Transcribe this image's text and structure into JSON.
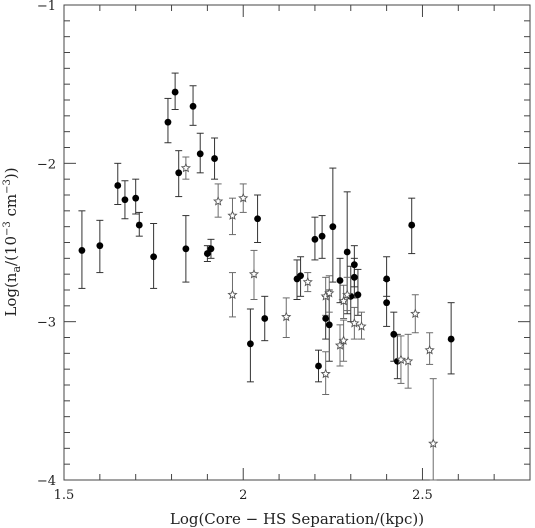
{
  "chart_data": {
    "type": "scatter",
    "title": "",
    "xlabel": "Log(Core − HS Separation/(kpc))",
    "ylabel": "Log(n",
    "ylabel_sub": "a",
    "ylabel_tail": "/(10",
    "ylabel_sup": "−3",
    "ylabel_unit": " cm",
    "ylabel_unit_sup": "−3",
    "ylabel_end": "))",
    "xlim": [
      1.5,
      2.8
    ],
    "ylim": [
      -4,
      -1
    ],
    "x_major_ticks": [
      1.5,
      2,
      2.5
    ],
    "x_tick_labels": [
      "1.5",
      "2",
      "2.5"
    ],
    "y_major_ticks": [
      -4,
      -3,
      -2,
      -1
    ],
    "y_tick_labels": [
      "−4",
      "−3",
      "−2",
      "−1"
    ],
    "grid": false,
    "series": [
      {
        "marker": "filled-circle",
        "color": "#000000",
        "points": [
          {
            "x": 1.55,
            "y": -2.55,
            "lo": -2.79,
            "hi": -2.3
          },
          {
            "x": 1.6,
            "y": -2.52,
            "lo": -2.69,
            "hi": -2.36
          },
          {
            "x": 1.65,
            "y": -2.14,
            "lo": -2.26,
            "hi": -2.0
          },
          {
            "x": 1.67,
            "y": -2.23,
            "lo": -2.35,
            "hi": -2.11
          },
          {
            "x": 1.7,
            "y": -2.22,
            "lo": -2.32,
            "hi": -2.1
          },
          {
            "x": 1.71,
            "y": -2.39,
            "lo": -2.46,
            "hi": -2.31
          },
          {
            "x": 1.75,
            "y": -2.59,
            "lo": -2.79,
            "hi": -2.38
          },
          {
            "x": 1.79,
            "y": -1.74,
            "lo": -1.87,
            "hi": -1.59
          },
          {
            "x": 1.81,
            "y": -1.55,
            "lo": -1.66,
            "hi": -1.43
          },
          {
            "x": 1.82,
            "y": -2.06,
            "lo": -2.21,
            "hi": -1.92
          },
          {
            "x": 1.84,
            "y": -2.54,
            "lo": -2.75,
            "hi": -2.33
          },
          {
            "x": 1.86,
            "y": -1.64,
            "lo": -1.76,
            "hi": -1.51
          },
          {
            "x": 1.88,
            "y": -1.94,
            "lo": -2.06,
            "hi": -1.81
          },
          {
            "x": 1.9,
            "y": -2.57,
            "lo": -2.62,
            "hi": -2.52
          },
          {
            "x": 1.91,
            "y": -2.54,
            "lo": -2.6,
            "hi": -2.48
          },
          {
            "x": 1.92,
            "y": -1.97,
            "lo": -2.1,
            "hi": -1.84
          },
          {
            "x": 2.02,
            "y": -3.14,
            "lo": -3.38,
            "hi": -2.92
          },
          {
            "x": 2.04,
            "y": -2.35,
            "lo": -2.5,
            "hi": -2.2
          },
          {
            "x": 2.06,
            "y": -2.98,
            "lo": -3.12,
            "hi": -2.84
          },
          {
            "x": 2.15,
            "y": -2.73,
            "lo": -2.86,
            "hi": -2.61
          },
          {
            "x": 2.16,
            "y": -2.71,
            "lo": -2.84,
            "hi": -2.59
          },
          {
            "x": 2.2,
            "y": -2.48,
            "lo": -2.61,
            "hi": -2.34
          },
          {
            "x": 2.21,
            "y": -3.28,
            "lo": -3.38,
            "hi": -3.18
          },
          {
            "x": 2.22,
            "y": -2.46,
            "lo": -2.6,
            "hi": -2.33
          },
          {
            "x": 2.23,
            "y": -2.98,
            "lo": -3.11,
            "hi": -2.84
          },
          {
            "x": 2.24,
            "y": -3.02,
            "lo": -3.25,
            "hi": -2.8
          },
          {
            "x": 2.25,
            "y": -2.4,
            "lo": -2.75,
            "hi": -2.03
          },
          {
            "x": 2.27,
            "y": -2.74,
            "lo": -2.88,
            "hi": -2.6
          },
          {
            "x": 2.29,
            "y": -2.56,
            "lo": -2.95,
            "hi": -2.18
          },
          {
            "x": 2.3,
            "y": -2.84,
            "lo": -3.0,
            "hi": -2.65
          },
          {
            "x": 2.31,
            "y": -2.72,
            "lo": -2.85,
            "hi": -2.6
          },
          {
            "x": 2.31,
            "y": -2.64,
            "lo": -2.78,
            "hi": -2.52
          },
          {
            "x": 2.32,
            "y": -2.83,
            "lo": -2.96,
            "hi": -2.67
          },
          {
            "x": 2.4,
            "y": -2.73,
            "lo": -2.84,
            "hi": -2.59
          },
          {
            "x": 2.4,
            "y": -2.88,
            "lo": -3.03,
            "hi": -2.74
          },
          {
            "x": 2.42,
            "y": -3.08,
            "lo": -3.25,
            "hi": -2.94
          },
          {
            "x": 2.43,
            "y": -3.25,
            "lo": -3.36,
            "hi": -3.08
          },
          {
            "x": 2.47,
            "y": -2.39,
            "lo": -2.57,
            "hi": -2.22
          },
          {
            "x": 2.58,
            "y": -3.11,
            "lo": -3.33,
            "hi": -2.88
          }
        ]
      },
      {
        "marker": "open-star",
        "color": "#000000",
        "points": [
          {
            "x": 1.84,
            "y": -2.03,
            "lo": -2.1,
            "hi": -1.96
          },
          {
            "x": 1.93,
            "y": -2.24,
            "lo": -2.34,
            "hi": -2.13
          },
          {
            "x": 1.97,
            "y": -2.33,
            "lo": -2.45,
            "hi": -2.22
          },
          {
            "x": 2.0,
            "y": -2.22,
            "lo": -2.31,
            "hi": -2.13
          },
          {
            "x": 1.97,
            "y": -2.83,
            "lo": -2.97,
            "hi": -2.69
          },
          {
            "x": 2.03,
            "y": -2.7,
            "lo": -2.86,
            "hi": -2.55
          },
          {
            "x": 2.12,
            "y": -2.97,
            "lo": -3.1,
            "hi": -2.85
          },
          {
            "x": 2.18,
            "y": -2.75,
            "lo": -2.81,
            "hi": -2.69
          },
          {
            "x": 2.23,
            "y": -2.84,
            "lo": -2.96,
            "hi": -2.72
          },
          {
            "x": 2.24,
            "y": -2.82,
            "lo": -2.94,
            "hi": -2.71
          },
          {
            "x": 2.23,
            "y": -3.33,
            "lo": -3.46,
            "hi": -3.19
          },
          {
            "x": 2.27,
            "y": -3.15,
            "lo": -3.28,
            "hi": -3.02
          },
          {
            "x": 2.28,
            "y": -3.12,
            "lo": -3.25,
            "hi": -2.99
          },
          {
            "x": 2.28,
            "y": -2.87,
            "lo": -2.98,
            "hi": -2.77
          },
          {
            "x": 2.29,
            "y": -2.83,
            "lo": -2.93,
            "hi": -2.72
          },
          {
            "x": 2.31,
            "y": -3.01,
            "lo": -3.11,
            "hi": -2.91
          },
          {
            "x": 2.33,
            "y": -3.03,
            "lo": -3.11,
            "hi": -2.94
          },
          {
            "x": 2.44,
            "y": -3.24,
            "lo": -3.39,
            "hi": -3.09
          },
          {
            "x": 2.46,
            "y": -3.25,
            "lo": -3.42,
            "hi": -3.08
          },
          {
            "x": 2.48,
            "y": -2.95,
            "lo": -3.07,
            "hi": -2.83
          },
          {
            "x": 2.52,
            "y": -3.18,
            "lo": -3.27,
            "hi": -3.07
          },
          {
            "x": 2.53,
            "y": -3.77,
            "lo": -4.0,
            "hi": -3.36
          }
        ]
      }
    ]
  }
}
